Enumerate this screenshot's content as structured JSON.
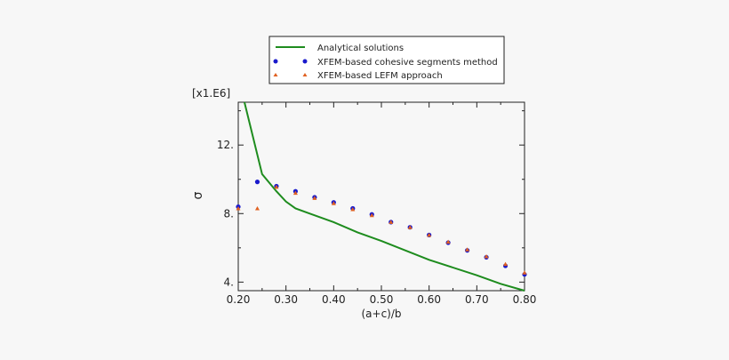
{
  "chart_data": {
    "type": "line",
    "title": "",
    "xlabel": "(a+c)/b",
    "ylabel": "σ",
    "y_multiplier_label": "[x1.E6]",
    "xlim": [
      0.2,
      0.8
    ],
    "ylim": [
      3.5,
      14.5
    ],
    "x_ticks": [
      0.2,
      0.3,
      0.4,
      0.5,
      0.6,
      0.7,
      0.8
    ],
    "x_tick_labels": [
      "0.20",
      "0.30",
      "0.40",
      "0.50",
      "0.60",
      "0.70",
      "0.80"
    ],
    "y_ticks": [
      4,
      8,
      12
    ],
    "y_tick_labels": [
      "4.",
      "8.",
      "12."
    ],
    "grid": false,
    "legend_position": "top-center-outside",
    "series": [
      {
        "name": "Analytical solutions",
        "kind": "line",
        "color": "#1e8c1e",
        "x": [
          0.213,
          0.25,
          0.28,
          0.3,
          0.32,
          0.35,
          0.4,
          0.45,
          0.5,
          0.6,
          0.7,
          0.75,
          0.8
        ],
        "y": [
          14.5,
          10.3,
          9.3,
          8.7,
          8.3,
          8.0,
          7.5,
          6.9,
          6.4,
          5.3,
          4.4,
          3.9,
          3.5
        ]
      },
      {
        "name": "XFEM-based cohesive segments method",
        "kind": "dots",
        "color": "#1a1acc",
        "x": [
          0.2,
          0.24,
          0.28,
          0.32,
          0.36,
          0.4,
          0.44,
          0.48,
          0.52,
          0.56,
          0.6,
          0.64,
          0.68,
          0.72,
          0.76,
          0.8
        ],
        "y": [
          8.4,
          9.85,
          9.6,
          9.3,
          8.95,
          8.65,
          8.3,
          7.95,
          7.5,
          7.2,
          6.75,
          6.3,
          5.85,
          5.45,
          4.95,
          4.45
        ]
      },
      {
        "name": "XFEM-based LEFM approach",
        "kind": "triangles",
        "color": "#e06020",
        "x": [
          0.2,
          0.24,
          0.28,
          0.32,
          0.36,
          0.4,
          0.44,
          0.48,
          0.52,
          0.56,
          0.6,
          0.64,
          0.68,
          0.72,
          0.76,
          0.8
        ],
        "y": [
          8.3,
          8.3,
          9.55,
          9.2,
          8.9,
          8.6,
          8.25,
          7.9,
          7.5,
          7.2,
          6.75,
          6.35,
          5.9,
          5.5,
          5.05,
          4.55
        ]
      }
    ]
  }
}
